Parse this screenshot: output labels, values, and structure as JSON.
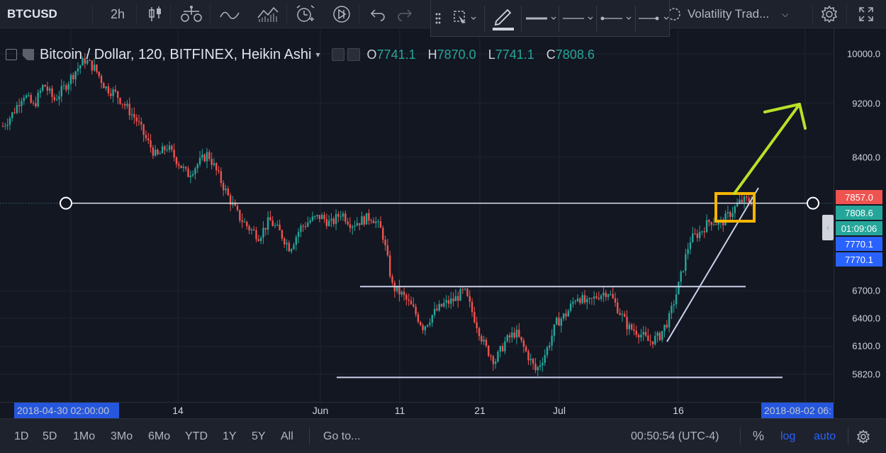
{
  "toolbar": {
    "symbol": "BTCUSD",
    "interval": "2h",
    "template_label": "Volatility Trad...",
    "icons": [
      "candles-icon",
      "compare-icon",
      "indicators-icon",
      "financials-icon",
      "alert-icon",
      "replay-icon",
      "undo-icon",
      "redo-icon",
      "settings-icon",
      "fullscreen-icon"
    ]
  },
  "drawbar": {
    "icons": [
      "drag-handle-icon",
      "select-tool-icon",
      "pencil-color-icon",
      "line-width-icon",
      "line-style-icon",
      "line-start-icon",
      "line-end-icon"
    ]
  },
  "legend": {
    "title": "Bitcoin / Dollar, 120, BITFINEX, Heikin Ashi",
    "o_label": "O",
    "o_value": "7741.1",
    "h_label": "H",
    "h_value": "7870.0",
    "l_label": "L",
    "l_value": "7741.1",
    "c_label": "C",
    "c_value": "7808.6"
  },
  "price_axis": {
    "ticks": [
      "10000.0",
      "9200.0",
      "8400.0",
      "6700.0",
      "6400.0",
      "6100.0",
      "5820.0"
    ],
    "badges": [
      {
        "label": "7857.0",
        "color": "#ef5350"
      },
      {
        "label": "7808.6",
        "color": "#26a69a"
      },
      {
        "label": "01:09:06",
        "color": "#26a69a"
      },
      {
        "label": "7770.1",
        "color": "#2962ff"
      },
      {
        "label": "7770.1",
        "color": "#2962ff"
      }
    ]
  },
  "time_axis": {
    "ticks": [
      "14",
      "Jun",
      "11",
      "21",
      "Jul",
      "16"
    ],
    "start_badge": "2018-04-30 02:00:00",
    "end_badge": "2018-08-02 06:"
  },
  "bottombar": {
    "ranges": [
      "1D",
      "5D",
      "1Mo",
      "3Mo",
      "6Mo",
      "YTD",
      "1Y",
      "5Y",
      "All"
    ],
    "goto": "Go to...",
    "clock": "00:50:54 (UTC-4)",
    "percent": "%",
    "log": "log",
    "auto": "auto"
  },
  "colors": {
    "up": "#26a69a",
    "down": "#ef5350",
    "highlight_box": "#f7b500",
    "arrow": "#b9e128",
    "trendline": "#c9d0e8"
  },
  "chart_data": {
    "type": "candlestick",
    "chart_style": "Heikin Ashi",
    "ylim": [
      5700,
      10300
    ],
    "x_range": [
      "2018-04-30",
      "2018-08-02"
    ],
    "drawn_horizontal_lines": [
      7770.1,
      6750,
      5790
    ],
    "trendline": {
      "from": [
        "2018-07-16",
        6150
      ],
      "to": [
        "2018-07-24",
        7880
      ]
    },
    "series": [
      {
        "name": "BTCUSD",
        "values": [
          8850,
          9050,
          9350,
          9150,
          9500,
          9250,
          9450,
          9700,
          9900,
          9750,
          9450,
          9350,
          9150,
          8950,
          8650,
          8400,
          8550,
          8350,
          8150,
          8300,
          8450,
          8150,
          7850,
          7600,
          7450,
          7350,
          7550,
          7400,
          7200,
          7450,
          7550,
          7600,
          7500,
          7650,
          7500,
          7550,
          7600,
          7400,
          6750,
          6650,
          6500,
          6300,
          6450,
          6550,
          6600,
          6700,
          6400,
          6100,
          5950,
          6150,
          6250,
          6050,
          5850,
          6050,
          6350,
          6450,
          6650,
          6550,
          6650,
          6700,
          6500,
          6300,
          6250,
          6150,
          6200,
          6400,
          6800,
          7300,
          7400,
          7550,
          7500,
          7650,
          7800,
          7808.6
        ]
      }
    ]
  }
}
